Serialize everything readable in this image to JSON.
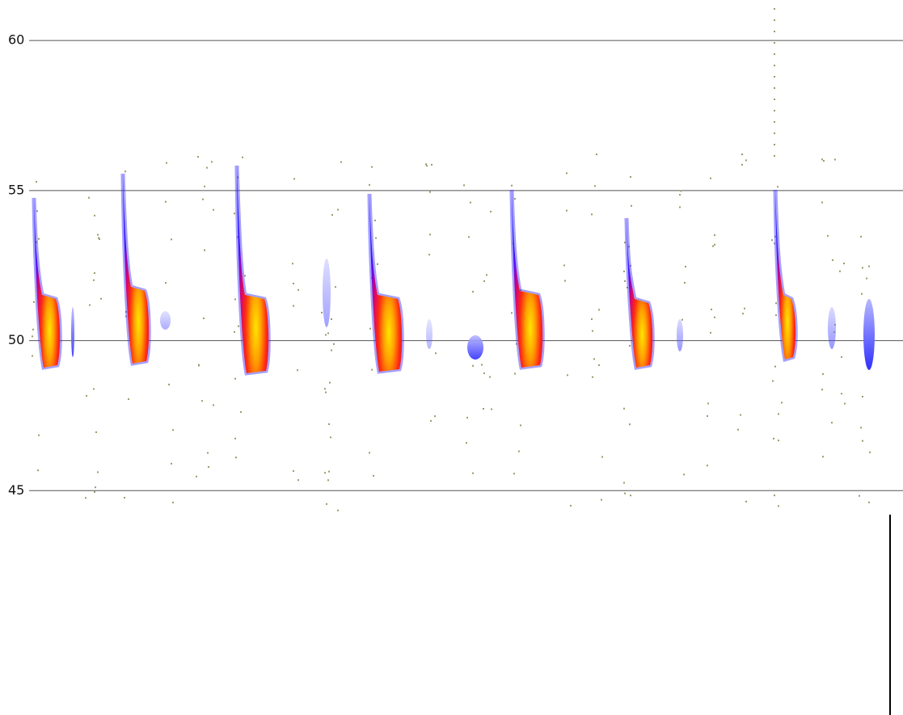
{
  "chart_data": {
    "type": "spectrogram",
    "ylim": [
      44.2,
      61.35
    ],
    "yticks": [
      45,
      50,
      55,
      60
    ],
    "grid": true
  }
}
